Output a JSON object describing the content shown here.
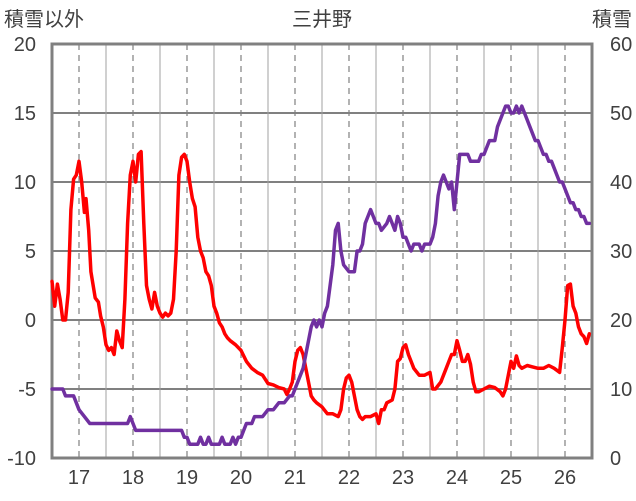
{
  "chart_data": {
    "type": "line",
    "title": "三井野",
    "left_axis_label": "積雪以外",
    "right_axis_label": "積雪",
    "left_ylim": [
      -10,
      20
    ],
    "left_yticks": [
      "20",
      "15",
      "10",
      "5",
      "0",
      "-5",
      "-10"
    ],
    "right_ylim": [
      0,
      60
    ],
    "right_yticks": [
      "60",
      "50",
      "40",
      "30",
      "20",
      "10",
      "0"
    ],
    "xlim": [
      16.5,
      26.5
    ],
    "x_tick_labels": [
      "17",
      "18",
      "19",
      "20",
      "21",
      "22",
      "23",
      "24",
      "25",
      "26"
    ],
    "grid": "dashed-vertical + solid-horizontal",
    "series": [
      {
        "axis": "left",
        "color": "#ff0000",
        "points": [
          [
            16.5,
            2.8
          ],
          [
            16.55,
            1.0
          ],
          [
            16.6,
            2.6
          ],
          [
            16.65,
            1.5
          ],
          [
            16.7,
            0.0
          ],
          [
            16.75,
            0.0
          ],
          [
            16.8,
            2.0
          ],
          [
            16.85,
            8.0
          ],
          [
            16.9,
            10.2
          ],
          [
            16.95,
            10.5
          ],
          [
            17.0,
            11.5
          ],
          [
            17.05,
            10.0
          ],
          [
            17.1,
            7.8
          ],
          [
            17.13,
            8.8
          ],
          [
            17.18,
            6.5
          ],
          [
            17.22,
            3.5
          ],
          [
            17.3,
            1.6
          ],
          [
            17.36,
            1.3
          ],
          [
            17.4,
            0.3
          ],
          [
            17.45,
            -0.5
          ],
          [
            17.5,
            -1.8
          ],
          [
            17.55,
            -2.2
          ],
          [
            17.6,
            -2.0
          ],
          [
            17.65,
            -2.5
          ],
          [
            17.7,
            -0.8
          ],
          [
            17.75,
            -1.5
          ],
          [
            17.8,
            -2.0
          ],
          [
            17.85,
            1.5
          ],
          [
            17.9,
            7.0
          ],
          [
            17.95,
            10.5
          ],
          [
            18.0,
            11.5
          ],
          [
            18.05,
            10.0
          ],
          [
            18.1,
            12.0
          ],
          [
            18.15,
            12.2
          ],
          [
            18.2,
            7.0
          ],
          [
            18.25,
            2.5
          ],
          [
            18.3,
            1.5
          ],
          [
            18.35,
            0.8
          ],
          [
            18.4,
            2.0
          ],
          [
            18.45,
            1.0
          ],
          [
            18.5,
            0.5
          ],
          [
            18.55,
            0.2
          ],
          [
            18.6,
            0.5
          ],
          [
            18.65,
            0.3
          ],
          [
            18.7,
            0.5
          ],
          [
            18.75,
            1.5
          ],
          [
            18.8,
            5.0
          ],
          [
            18.85,
            10.5
          ],
          [
            18.9,
            11.8
          ],
          [
            18.95,
            12.0
          ],
          [
            19.0,
            11.5
          ],
          [
            19.05,
            10.0
          ],
          [
            19.1,
            8.8
          ],
          [
            19.15,
            8.2
          ],
          [
            19.2,
            6.0
          ],
          [
            19.25,
            5.0
          ],
          [
            19.3,
            4.5
          ],
          [
            19.35,
            3.5
          ],
          [
            19.4,
            3.2
          ],
          [
            19.45,
            2.5
          ],
          [
            19.5,
            1.0
          ],
          [
            19.55,
            0.5
          ],
          [
            19.6,
            -0.2
          ],
          [
            19.65,
            -0.5
          ],
          [
            19.7,
            -1.0
          ],
          [
            19.75,
            -1.3
          ],
          [
            19.8,
            -1.5
          ],
          [
            19.9,
            -1.8
          ],
          [
            20.0,
            -2.2
          ],
          [
            20.1,
            -3.0
          ],
          [
            20.2,
            -3.5
          ],
          [
            20.3,
            -3.8
          ],
          [
            20.4,
            -4.0
          ],
          [
            20.5,
            -4.6
          ],
          [
            20.6,
            -4.7
          ],
          [
            20.7,
            -4.9
          ],
          [
            20.8,
            -5.0
          ],
          [
            20.85,
            -5.4
          ],
          [
            20.9,
            -5.0
          ],
          [
            20.95,
            -4.5
          ],
          [
            21.0,
            -3.0
          ],
          [
            21.05,
            -2.2
          ],
          [
            21.1,
            -2.0
          ],
          [
            21.15,
            -2.5
          ],
          [
            21.2,
            -3.5
          ],
          [
            21.25,
            -4.5
          ],
          [
            21.3,
            -5.5
          ],
          [
            21.35,
            -5.8
          ],
          [
            21.4,
            -6.0
          ],
          [
            21.5,
            -6.3
          ],
          [
            21.6,
            -6.8
          ],
          [
            21.7,
            -6.8
          ],
          [
            21.8,
            -7.0
          ],
          [
            21.85,
            -6.5
          ],
          [
            21.9,
            -5.0
          ],
          [
            21.95,
            -4.2
          ],
          [
            22.0,
            -4.0
          ],
          [
            22.05,
            -4.5
          ],
          [
            22.1,
            -5.5
          ],
          [
            22.15,
            -6.5
          ],
          [
            22.2,
            -7.0
          ],
          [
            22.25,
            -7.2
          ],
          [
            22.3,
            -7.0
          ],
          [
            22.4,
            -7.0
          ],
          [
            22.5,
            -6.8
          ],
          [
            22.55,
            -7.5
          ],
          [
            22.6,
            -6.5
          ],
          [
            22.65,
            -6.5
          ],
          [
            22.7,
            -6.0
          ],
          [
            22.8,
            -5.8
          ],
          [
            22.85,
            -5.0
          ],
          [
            22.9,
            -3.0
          ],
          [
            22.95,
            -2.8
          ],
          [
            23.0,
            -2.0
          ],
          [
            23.05,
            -1.8
          ],
          [
            23.1,
            -2.5
          ],
          [
            23.15,
            -3.0
          ],
          [
            23.2,
            -3.5
          ],
          [
            23.3,
            -4.0
          ],
          [
            23.4,
            -4.0
          ],
          [
            23.5,
            -3.8
          ],
          [
            23.55,
            -5.0
          ],
          [
            23.6,
            -5.0
          ],
          [
            23.7,
            -4.5
          ],
          [
            23.8,
            -3.5
          ],
          [
            23.85,
            -3.0
          ],
          [
            23.9,
            -2.5
          ],
          [
            23.95,
            -2.5
          ],
          [
            24.0,
            -1.5
          ],
          [
            24.05,
            -2.2
          ],
          [
            24.1,
            -3.0
          ],
          [
            24.15,
            -3.0
          ],
          [
            24.2,
            -2.5
          ],
          [
            24.25,
            -3.2
          ],
          [
            24.3,
            -4.5
          ],
          [
            24.35,
            -5.2
          ],
          [
            24.4,
            -5.2
          ],
          [
            24.5,
            -5.0
          ],
          [
            24.6,
            -4.8
          ],
          [
            24.7,
            -4.9
          ],
          [
            24.8,
            -5.2
          ],
          [
            24.85,
            -5.5
          ],
          [
            24.9,
            -5.0
          ],
          [
            24.95,
            -4.0
          ],
          [
            25.0,
            -3.0
          ],
          [
            25.05,
            -3.5
          ],
          [
            25.1,
            -2.6
          ],
          [
            25.15,
            -3.3
          ],
          [
            25.2,
            -3.5
          ],
          [
            25.3,
            -3.3
          ],
          [
            25.4,
            -3.4
          ],
          [
            25.5,
            -3.5
          ],
          [
            25.6,
            -3.5
          ],
          [
            25.7,
            -3.3
          ],
          [
            25.8,
            -3.5
          ],
          [
            25.9,
            -3.8
          ],
          [
            25.95,
            -2.0
          ],
          [
            26.0,
            0.0
          ],
          [
            26.05,
            2.5
          ],
          [
            26.1,
            2.6
          ],
          [
            26.15,
            1.0
          ],
          [
            26.2,
            0.5
          ],
          [
            26.25,
            -0.5
          ],
          [
            26.3,
            -1.0
          ],
          [
            26.35,
            -1.2
          ],
          [
            26.4,
            -1.7
          ],
          [
            26.45,
            -1.0
          ]
        ]
      },
      {
        "axis": "right",
        "color": "#7030a0",
        "points": [
          [
            16.5,
            10
          ],
          [
            16.7,
            10
          ],
          [
            16.75,
            9
          ],
          [
            16.9,
            9
          ],
          [
            16.95,
            8
          ],
          [
            17.0,
            7
          ],
          [
            17.1,
            6
          ],
          [
            17.2,
            5
          ],
          [
            17.4,
            5
          ],
          [
            17.6,
            5
          ],
          [
            17.8,
            5
          ],
          [
            17.9,
            5
          ],
          [
            17.95,
            6
          ],
          [
            18.0,
            5
          ],
          [
            18.05,
            4
          ],
          [
            18.3,
            4
          ],
          [
            18.5,
            4
          ],
          [
            18.7,
            4
          ],
          [
            18.9,
            4
          ],
          [
            18.95,
            3
          ],
          [
            19.0,
            3
          ],
          [
            19.05,
            2
          ],
          [
            19.2,
            2
          ],
          [
            19.25,
            3
          ],
          [
            19.3,
            2
          ],
          [
            19.35,
            2
          ],
          [
            19.4,
            3
          ],
          [
            19.45,
            2
          ],
          [
            19.5,
            2
          ],
          [
            19.6,
            2
          ],
          [
            19.65,
            3
          ],
          [
            19.7,
            2
          ],
          [
            19.8,
            2
          ],
          [
            19.85,
            3
          ],
          [
            19.9,
            2
          ],
          [
            19.95,
            3
          ],
          [
            20.0,
            3
          ],
          [
            20.05,
            4
          ],
          [
            20.1,
            5
          ],
          [
            20.15,
            5
          ],
          [
            20.2,
            5
          ],
          [
            20.25,
            6
          ],
          [
            20.3,
            6
          ],
          [
            20.4,
            6
          ],
          [
            20.5,
            7
          ],
          [
            20.6,
            7
          ],
          [
            20.7,
            8
          ],
          [
            20.8,
            8
          ],
          [
            20.9,
            9
          ],
          [
            20.95,
            9
          ],
          [
            21.0,
            10
          ],
          [
            21.05,
            11
          ],
          [
            21.1,
            12
          ],
          [
            21.15,
            13
          ],
          [
            21.2,
            15
          ],
          [
            21.25,
            17
          ],
          [
            21.3,
            19
          ],
          [
            21.35,
            20
          ],
          [
            21.4,
            19
          ],
          [
            21.45,
            20
          ],
          [
            21.5,
            19
          ],
          [
            21.55,
            21
          ],
          [
            21.6,
            22
          ],
          [
            21.65,
            25
          ],
          [
            21.7,
            28
          ],
          [
            21.75,
            33
          ],
          [
            21.8,
            34
          ],
          [
            21.85,
            30
          ],
          [
            21.9,
            28
          ],
          [
            22.0,
            27
          ],
          [
            22.1,
            27
          ],
          [
            22.15,
            30
          ],
          [
            22.2,
            30
          ],
          [
            22.25,
            31
          ],
          [
            22.3,
            34
          ],
          [
            22.35,
            35
          ],
          [
            22.4,
            36
          ],
          [
            22.45,
            35
          ],
          [
            22.5,
            34
          ],
          [
            22.55,
            34
          ],
          [
            22.6,
            33
          ],
          [
            22.7,
            34
          ],
          [
            22.75,
            35
          ],
          [
            22.8,
            34
          ],
          [
            22.85,
            33
          ],
          [
            22.9,
            35
          ],
          [
            22.95,
            34
          ],
          [
            23.0,
            32
          ],
          [
            23.05,
            32
          ],
          [
            23.1,
            31
          ],
          [
            23.15,
            30
          ],
          [
            23.2,
            31
          ],
          [
            23.3,
            31
          ],
          [
            23.35,
            30
          ],
          [
            23.4,
            31
          ],
          [
            23.5,
            31
          ],
          [
            23.55,
            32
          ],
          [
            23.6,
            34
          ],
          [
            23.65,
            38
          ],
          [
            23.7,
            40
          ],
          [
            23.75,
            41
          ],
          [
            23.8,
            40
          ],
          [
            23.85,
            39
          ],
          [
            23.9,
            40
          ],
          [
            23.95,
            36
          ],
          [
            24.0,
            40
          ],
          [
            24.05,
            44
          ],
          [
            24.1,
            44
          ],
          [
            24.2,
            44
          ],
          [
            24.25,
            43
          ],
          [
            24.3,
            43
          ],
          [
            24.4,
            43
          ],
          [
            24.45,
            44
          ],
          [
            24.5,
            44
          ],
          [
            24.55,
            45
          ],
          [
            24.6,
            46
          ],
          [
            24.65,
            46
          ],
          [
            24.7,
            46
          ],
          [
            24.75,
            48
          ],
          [
            24.8,
            49
          ],
          [
            24.85,
            50
          ],
          [
            24.9,
            51
          ],
          [
            24.95,
            51
          ],
          [
            25.0,
            50
          ],
          [
            25.05,
            50
          ],
          [
            25.1,
            51
          ],
          [
            25.15,
            50
          ],
          [
            25.2,
            51
          ],
          [
            25.25,
            50
          ],
          [
            25.3,
            49
          ],
          [
            25.35,
            48
          ],
          [
            25.4,
            47
          ],
          [
            25.45,
            46
          ],
          [
            25.5,
            46
          ],
          [
            25.55,
            45
          ],
          [
            25.6,
            44
          ],
          [
            25.65,
            44
          ],
          [
            25.7,
            43
          ],
          [
            25.75,
            43
          ],
          [
            25.8,
            42
          ],
          [
            25.85,
            41
          ],
          [
            25.9,
            40
          ],
          [
            25.95,
            40
          ],
          [
            26.0,
            39
          ],
          [
            26.05,
            38
          ],
          [
            26.1,
            37
          ],
          [
            26.15,
            37
          ],
          [
            26.2,
            36
          ],
          [
            26.25,
            36
          ],
          [
            26.3,
            35
          ],
          [
            26.35,
            35
          ],
          [
            26.4,
            34
          ],
          [
            26.45,
            34
          ]
        ]
      }
    ]
  }
}
